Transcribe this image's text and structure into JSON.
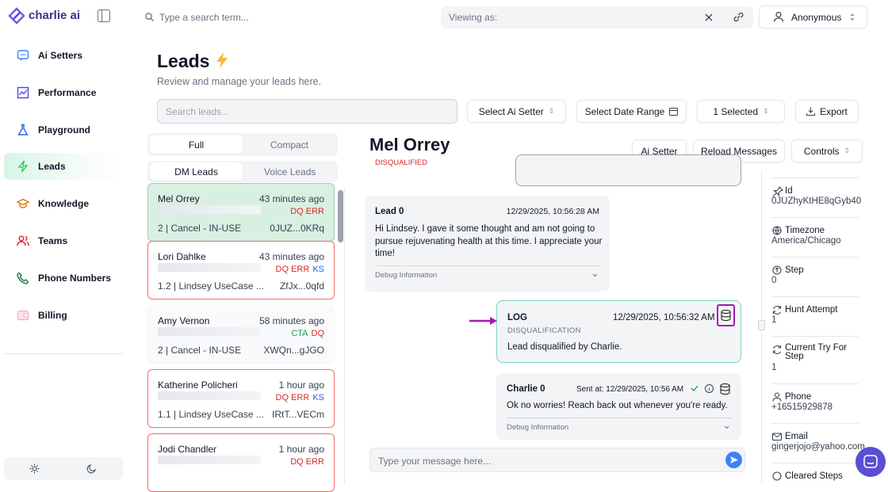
{
  "brand": "charlie ai",
  "top_search": "Type a search term...",
  "viewing_as": "Viewing as:",
  "user": "Anonymous",
  "nav": [
    "Ai Setters",
    "Performance",
    "Playground",
    "Leads",
    "Knowledge",
    "Teams",
    "Phone Numbers",
    "Billing"
  ],
  "page": {
    "title": "Leads",
    "subtitle": "Review and manage your leads here."
  },
  "filters": {
    "search": "Search leads...",
    "setter": "Select Ai Setter",
    "date": "Select Date Range",
    "selected": "1 Selected",
    "export": "Export"
  },
  "view_tabs": [
    "Full",
    "Compact"
  ],
  "lead_tabs": [
    "DM Leads",
    "Voice Leads"
  ],
  "leads": [
    {
      "name": "Mel Orrey",
      "time": "43 minutes ago",
      "tags": [
        {
          "text": "DQ ERR",
          "color": "#dc2626"
        }
      ],
      "info": "2 | Cancel - IN-USE",
      "id": "0JUZ...0KRq",
      "selected": true
    },
    {
      "name": "Lori Dahlke",
      "time": "43 minutes ago",
      "tags": [
        {
          "text": "DQ ERR",
          "color": "#dc2626"
        },
        {
          "text": "KS",
          "color": "#2563eb"
        }
      ],
      "info": "1.2 | Lindsey UseCase ...",
      "id": "ZfJx...0qfd",
      "border": "#ef6b6b"
    },
    {
      "name": "Amy Vernon",
      "time": "58 minutes ago",
      "tags": [
        {
          "text": "CTA",
          "color": "#16a34a"
        },
        {
          "text": "DQ",
          "color": "#dc2626"
        }
      ],
      "info": "2 | Cancel - IN-USE",
      "id": "XWQn...gJGO"
    },
    {
      "name": "Katherine Policheri",
      "time": "1 hour ago",
      "tags": [
        {
          "text": "DQ ERR",
          "color": "#dc2626"
        },
        {
          "text": "KS",
          "color": "#2563eb"
        }
      ],
      "info": "1.1 | Lindsey UseCase ...",
      "id": "IRtT...VECm",
      "border": "#ef6b6b"
    },
    {
      "name": "Jodi Chandler",
      "time": "1 hour ago",
      "tags": [
        {
          "text": "DQ ERR",
          "color": "#dc2626"
        }
      ],
      "border": "#ef6b6b"
    }
  ],
  "detail": {
    "name": "Mel Orrey",
    "status": "DISQUALIFIED",
    "buttons": [
      "Ai Setter",
      "Reload Messages",
      "Controls"
    ],
    "messages": [
      {
        "sender": "Lead 0",
        "time": "12/29/2025, 10:56:28 AM",
        "text": "Hi Lindsey. I gave it some thought and am not going to pursue rejuvenating health at this time. I appreciate your time!",
        "debug": "Debug Information"
      },
      {
        "sender": "LOG",
        "time": "12/29/2025, 10:56:32 AM",
        "kind": "DISQUALIFICATION",
        "text": "Lead disqualified by Charlie."
      },
      {
        "sender": "Charlie 0",
        "time": "Sent at: 12/29/2025, 10:56 AM",
        "text": "Ok no worries! Reach back out whenever you're ready.",
        "debug": "Debug Information"
      }
    ],
    "input": "Type your message here..."
  },
  "fields": [
    {
      "label": "Id",
      "value": "0JUZhyKtHE8qGyb40"
    },
    {
      "label": "Timezone",
      "value": "America/Chicago"
    },
    {
      "label": "Step",
      "value": "0"
    },
    {
      "label": "Hunt Attempt",
      "value": "1"
    },
    {
      "label": "Current Try For Step",
      "value": "1"
    },
    {
      "label": "Phone",
      "value": "+16515929878"
    },
    {
      "label": "Email",
      "value": "gingerjojo@yahoo.com"
    },
    {
      "label": "Cleared Steps"
    }
  ]
}
